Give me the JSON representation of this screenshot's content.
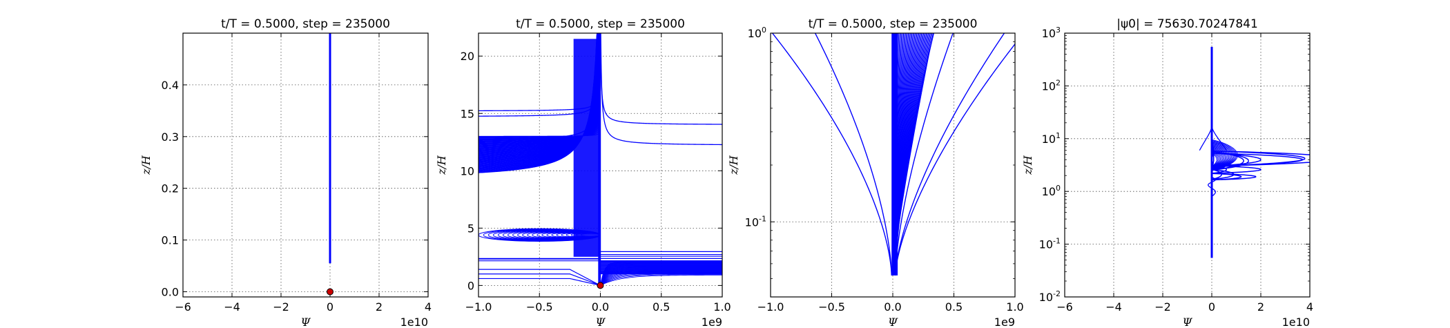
{
  "chart_data": [
    {
      "type": "line",
      "title": "t/T = 0.5000, step = 235000",
      "xlabel": "Ψ",
      "ylabel": "z/H",
      "xscale": "linear",
      "yscale": "linear",
      "xlim": [
        -6,
        4
      ],
      "ylim": [
        -0.01,
        0.5
      ],
      "x_multiplier_label": "1e10",
      "xticks": [
        -6,
        -4,
        -2,
        0,
        2,
        4
      ],
      "xtick_labels": [
        "−6",
        "−4",
        "−2",
        "0",
        "2",
        "4"
      ],
      "yticks": [
        0.0,
        0.1,
        0.2,
        0.3,
        0.4
      ],
      "ytick_labels": [
        "0.0",
        "0.1",
        "0.2",
        "0.3",
        "0.4"
      ],
      "grid": true,
      "line_color": "#0000ff",
      "marker_color": "#cc0000",
      "marker": {
        "x": 0,
        "y": 0
      },
      "series": [
        {
          "x": [
            0,
            0
          ],
          "y": [
            0.055,
            0.5
          ]
        }
      ]
    },
    {
      "type": "line",
      "title": "t/T = 0.5000, step = 235000",
      "xlabel": "Ψ",
      "ylabel": "z/H",
      "xscale": "linear",
      "yscale": "linear",
      "xlim": [
        -1.0,
        1.0
      ],
      "ylim": [
        -1,
        22
      ],
      "x_multiplier_label": "1e9",
      "xticks": [
        -1.0,
        -0.5,
        0.0,
        0.5,
        1.0
      ],
      "xtick_labels": [
        "−1.0",
        "−0.5",
        "0.0",
        "0.5",
        "1.0"
      ],
      "yticks": [
        0,
        5,
        10,
        15,
        20
      ],
      "ytick_labels": [
        "0",
        "5",
        "10",
        "15",
        "20"
      ],
      "grid": true,
      "line_color": "#0000ff",
      "marker_color": "#cc0000",
      "marker": {
        "x": 0,
        "y": 0
      }
    },
    {
      "type": "line",
      "title": "t/T = 0.5000, step = 235000",
      "xlabel": "Ψ",
      "ylabel": "z/H",
      "xscale": "linear",
      "yscale": "log",
      "xlim": [
        -1.0,
        1.0
      ],
      "ylim": [
        0.04,
        1.0
      ],
      "x_multiplier_label": "1e9",
      "xticks": [
        -1.0,
        -0.5,
        0.0,
        0.5,
        1.0
      ],
      "xtick_labels": [
        "−1.0",
        "−0.5",
        "0.0",
        "0.5",
        "1.0"
      ],
      "yticks": [
        0.1,
        1.0
      ],
      "ytick_labels": [
        {
          "base": "10",
          "exp": "-1"
        },
        {
          "base": "10",
          "exp": "0"
        }
      ],
      "grid": true,
      "line_color": "#0000ff"
    },
    {
      "type": "line",
      "title": "|ψ0| = 75630.70247841",
      "xlabel": "Ψ",
      "ylabel": "z/H",
      "xscale": "linear",
      "yscale": "log",
      "xlim": [
        -6,
        4
      ],
      "ylim": [
        0.01,
        1000
      ],
      "x_multiplier_label": "1e10",
      "xticks": [
        -6,
        -4,
        -2,
        0,
        2,
        4
      ],
      "xtick_labels": [
        "−6",
        "−4",
        "−2",
        "0",
        "2",
        "4"
      ],
      "yticks": [
        0.01,
        0.1,
        1,
        10,
        100,
        1000
      ],
      "ytick_labels": [
        {
          "base": "10",
          "exp": "-2"
        },
        {
          "base": "10",
          "exp": "-1"
        },
        {
          "base": "10",
          "exp": "0"
        },
        {
          "base": "10",
          "exp": "1"
        },
        {
          "base": "10",
          "exp": "2"
        },
        {
          "base": "10",
          "exp": "3"
        }
      ],
      "grid": true,
      "line_color": "#0000ff"
    }
  ]
}
